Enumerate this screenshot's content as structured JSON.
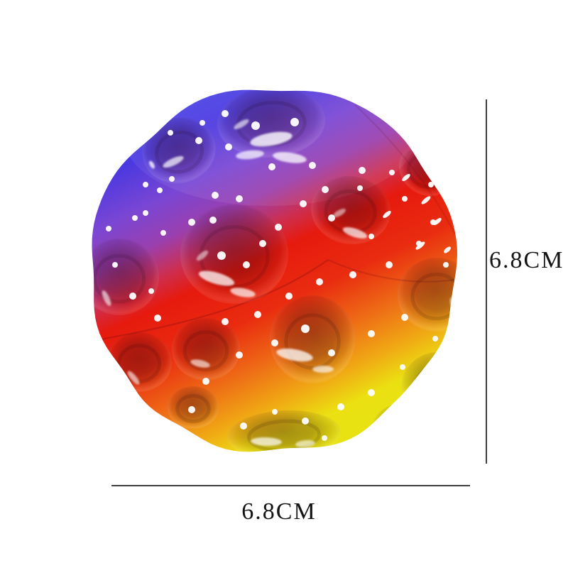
{
  "page": {
    "background_color": "#ffffff"
  },
  "product": {
    "colors": {
      "blue": "#4a41e4",
      "violet": "#7a46d4",
      "red": "#e61a0e",
      "orange": "#ee6b16",
      "yellow": "#e8e212",
      "speckle": "#ffffff"
    },
    "gradient_stops": [
      [
        0.0,
        "#4a46ea"
      ],
      [
        0.13,
        "#4a38e0"
      ],
      [
        0.25,
        "#7a46d4"
      ],
      [
        0.35,
        "#9a3fae"
      ],
      [
        0.43,
        "#cc2f52"
      ],
      [
        0.5,
        "#e61a0e"
      ],
      [
        0.63,
        "#e92c10"
      ],
      [
        0.75,
        "#ee6b16"
      ],
      [
        0.86,
        "#f0ab14"
      ],
      [
        0.94,
        "#ebe012"
      ],
      [
        1.0,
        "#e8e212"
      ]
    ]
  },
  "dimensions": {
    "height_label": "6.8CM",
    "width_label": "6.8CM",
    "line_color": "#3f3f3f",
    "label_color": "#141414"
  }
}
